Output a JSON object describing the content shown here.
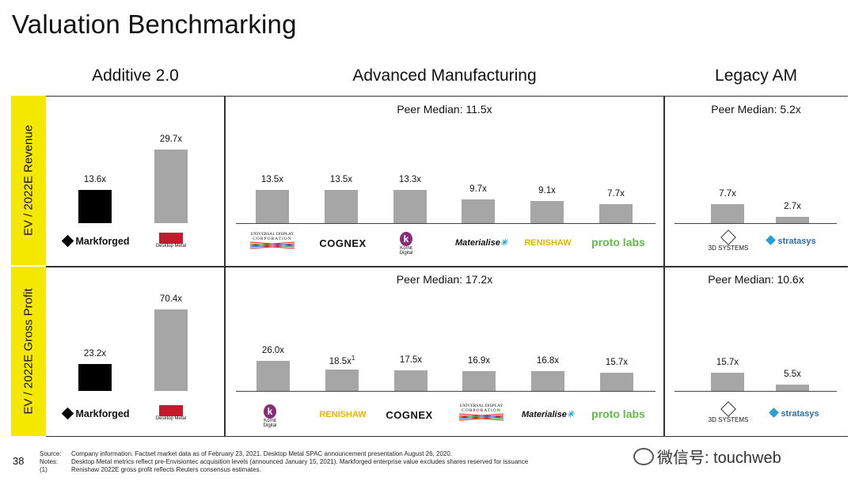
{
  "title": "Valuation Benchmarking",
  "columns": {
    "additive": "Additive 2.0",
    "advanced": "Advanced Manufacturing",
    "legacy": "Legacy AM"
  },
  "rows": {
    "revenue": "EV / 2022E Revenue",
    "gross": "EV / 2022E Gross Profit"
  },
  "medians": {
    "adv_rev": "Peer Median: 11.5x",
    "leg_rev": "Peer Median: 5.2x",
    "adv_gp": "Peer Median: 17.2x",
    "leg_gp": "Peer Median: 10.6x"
  },
  "colors": {
    "highlight": "#000000",
    "peer": "#a6a6a6",
    "label_band": "#f5e800"
  },
  "chart_data": [
    {
      "type": "bar",
      "title": "Additive 2.0 - EV / 2022E Revenue",
      "categories": [
        "Markforged",
        "Desktop Metal"
      ],
      "values": [
        13.6,
        29.7
      ],
      "labels": [
        "13.6x",
        "29.7x"
      ],
      "ylim": [
        0,
        32
      ]
    },
    {
      "type": "bar",
      "title": "Advanced Manufacturing - EV / 2022E Revenue",
      "categories": [
        "Universal Display Corporation",
        "COGNEX",
        "Kornit Digital",
        "Materialise",
        "RENISHAW",
        "proto labs"
      ],
      "values": [
        13.5,
        13.5,
        13.3,
        9.7,
        9.1,
        7.7
      ],
      "labels": [
        "13.5x",
        "13.5x",
        "13.3x",
        "9.7x",
        "9.1x",
        "7.7x"
      ],
      "ylim": [
        0,
        32
      ]
    },
    {
      "type": "bar",
      "title": "Legacy AM - EV / 2022E Revenue",
      "categories": [
        "3D SYSTEMS",
        "stratasys"
      ],
      "values": [
        7.7,
        2.7
      ],
      "labels": [
        "7.7x",
        "2.7x"
      ],
      "ylim": [
        0,
        32
      ]
    },
    {
      "type": "bar",
      "title": "Additive 2.0 - EV / 2022E Gross Profit",
      "categories": [
        "Markforged",
        "Desktop Metal"
      ],
      "values": [
        23.2,
        70.4
      ],
      "labels": [
        "23.2x",
        "70.4x"
      ],
      "ylim": [
        0,
        75
      ]
    },
    {
      "type": "bar",
      "title": "Advanced Manufacturing - EV / 2022E Gross Profit",
      "categories": [
        "Kornit Digital",
        "RENISHAW",
        "COGNEX",
        "Universal Display Corporation",
        "Materialise",
        "proto labs"
      ],
      "values": [
        26.0,
        18.5,
        17.5,
        16.9,
        16.8,
        15.7
      ],
      "labels": [
        "26.0x",
        "18.5x",
        "17.5x",
        "16.9x",
        "16.8x",
        "15.7x"
      ],
      "footnote_marks": [
        "",
        "1",
        "",
        "",
        "",
        ""
      ],
      "ylim": [
        0,
        75
      ]
    },
    {
      "type": "bar",
      "title": "Legacy AM - EV / 2022E Gross Profit",
      "categories": [
        "3D SYSTEMS",
        "stratasys"
      ],
      "values": [
        15.7,
        5.5
      ],
      "labels": [
        "15.7x",
        "5.5x"
      ],
      "ylim": [
        0,
        75
      ]
    }
  ],
  "logos": {
    "markforged": "Markforged",
    "desktop_metal": "Desktop Metal",
    "udc_line1": "UNIVERSAL DISPLAY",
    "udc_line2": "CORPORATION",
    "cognex": "COGNEX",
    "kornit": "Kornit Digital",
    "materialise": "Materialise",
    "renishaw": "RENISHAW",
    "protolabs": "proto labs",
    "3dsystems": "3D SYSTEMS",
    "stratasys": "stratasys"
  },
  "footer": {
    "page": "38",
    "source_label": "Source:",
    "source_text": "Company information. Factset market data as of February 23, 2021. Desktop Metal SPAC announcement presentation August 26, 2020.",
    "notes_label": "Notes:",
    "notes_text": "Desktop Metal metrics reflect pre-Envisiontec acquisition levels (announced January 15, 2021). Markforged enterprise value excludes shares reserved for issuance",
    "fn_label": "(1)",
    "fn_text": "Renishaw 2022E gross profit reflects Reuters consensus estimates."
  },
  "watermark": "微信号: touchweb"
}
